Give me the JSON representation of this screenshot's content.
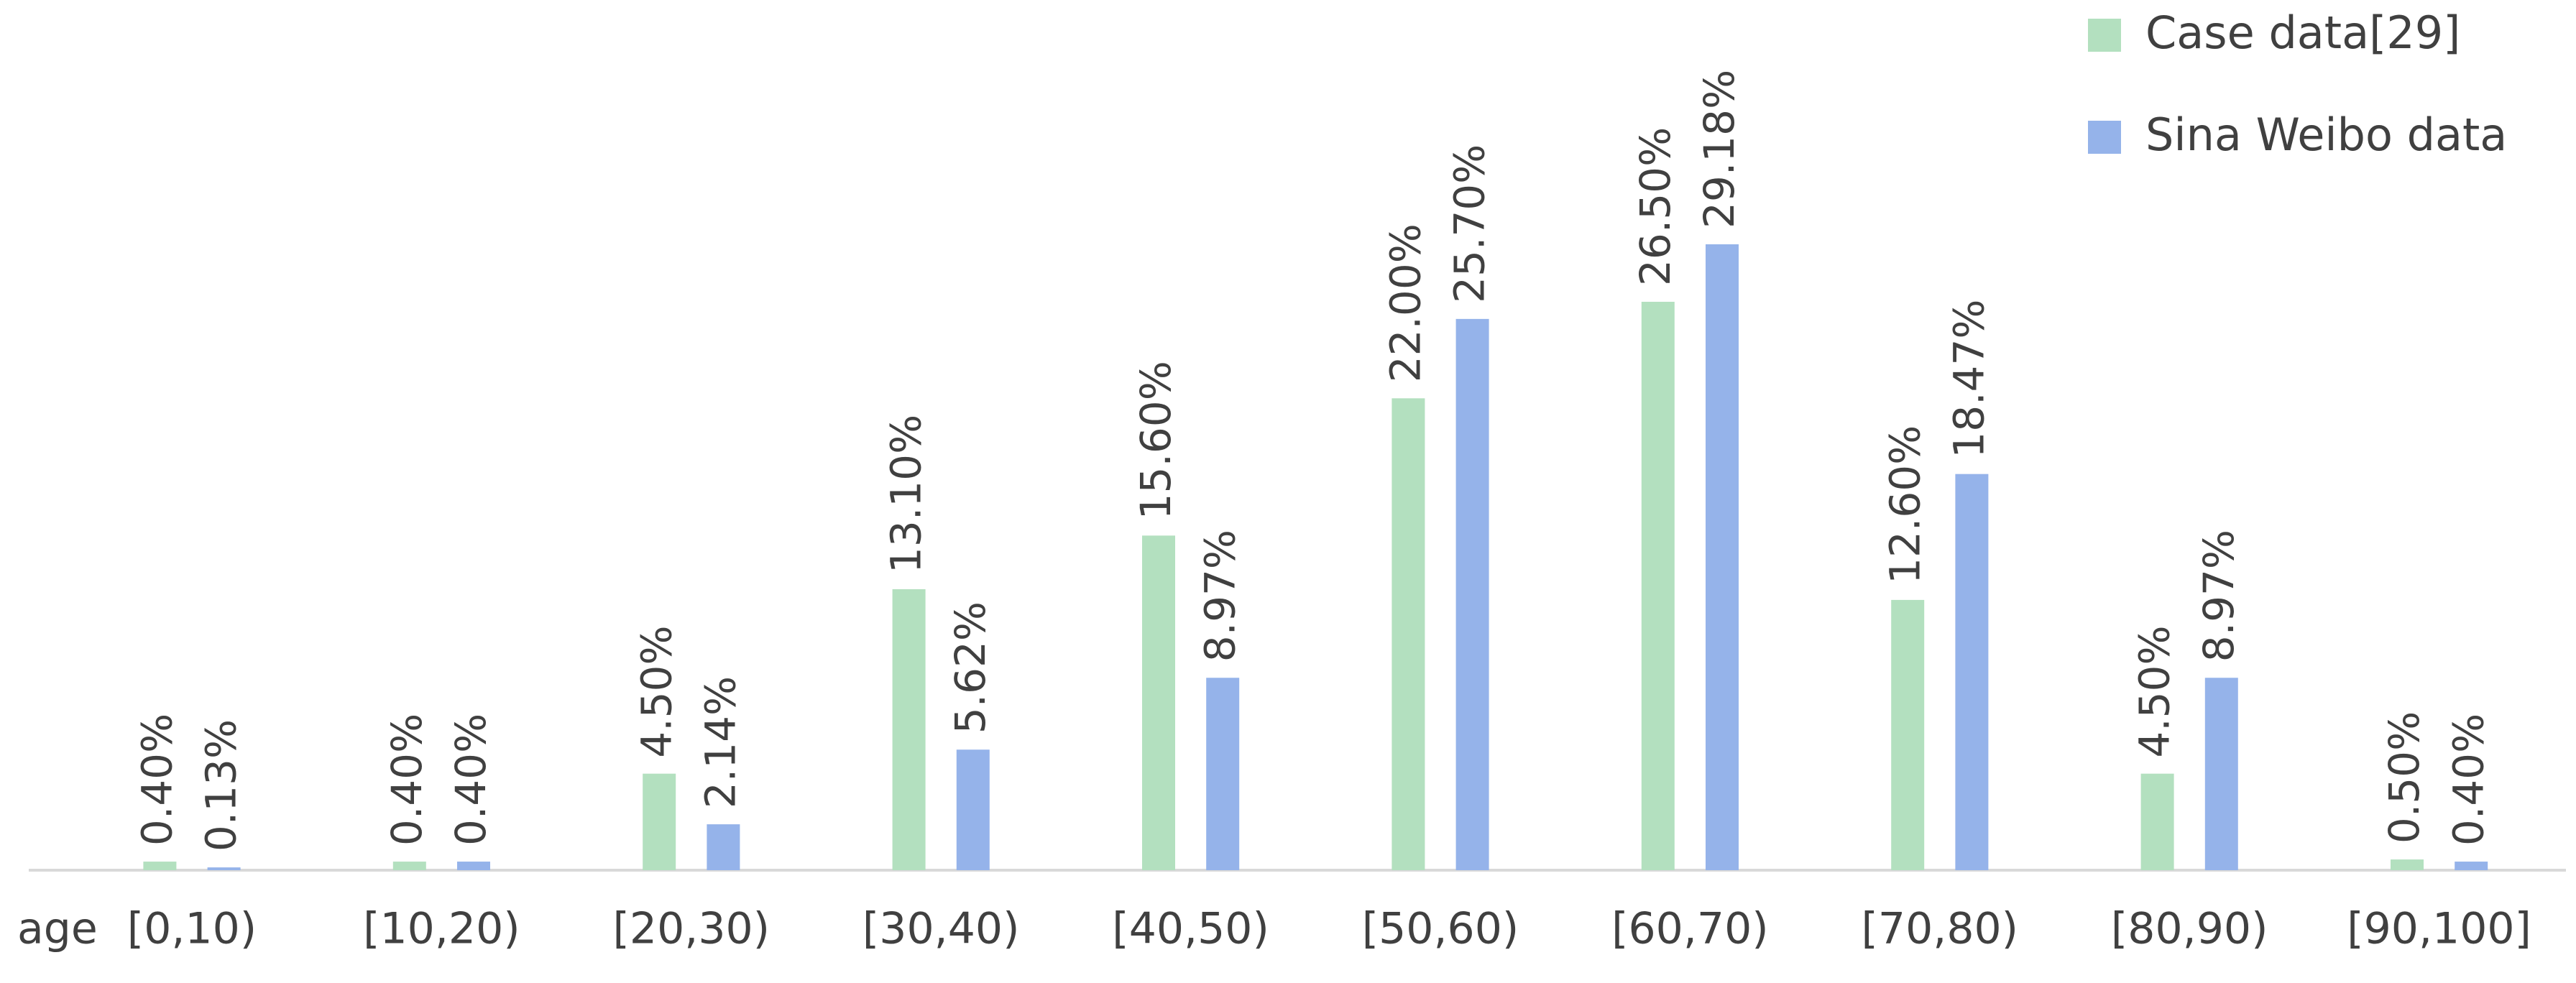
{
  "chart_data": {
    "type": "bar",
    "x_label": "age",
    "categories": [
      "[0,10)",
      "[10,20)",
      "[20,30)",
      "[30,40)",
      "[40,50)",
      "[50,60)",
      "[60,70)",
      "[70,80)",
      "[80,90)",
      "[90,100]"
    ],
    "series": [
      {
        "name": "Case data[29]",
        "color": "#b3e0bf",
        "values": [
          0.4,
          0.4,
          4.5,
          13.1,
          15.6,
          22.0,
          26.5,
          12.6,
          4.5,
          0.5
        ],
        "value_labels": [
          "0.40%",
          "0.40%",
          "4.50%",
          "13.10%",
          "15.60%",
          "22.00%",
          "26.50%",
          "12.60%",
          "4.50%",
          "0.50%"
        ]
      },
      {
        "name": "Sina Weibo data",
        "color": "#95b3ea",
        "values": [
          0.13,
          0.4,
          2.14,
          5.62,
          8.97,
          25.7,
          29.18,
          18.47,
          8.97,
          0.4
        ],
        "value_labels": [
          "0.13%",
          "0.40%",
          "2.14%",
          "5.62%",
          "8.97%",
          "25.70%",
          "29.18%",
          "18.47%",
          "8.97%",
          "0.40%"
        ]
      }
    ],
    "legend": "top-right"
  }
}
